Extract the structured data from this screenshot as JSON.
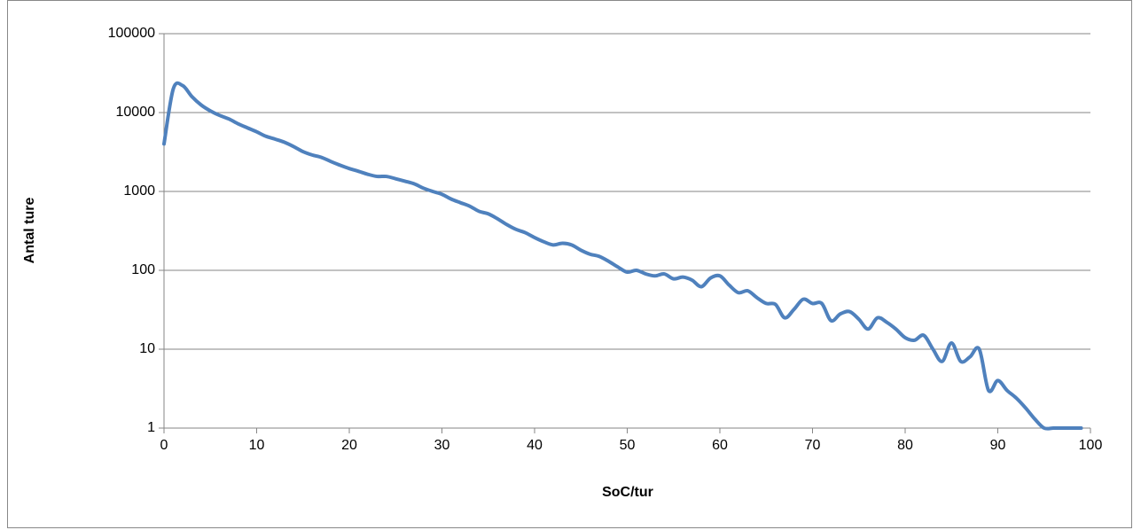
{
  "chart_data": {
    "type": "line",
    "x_label": "SoC/tur",
    "y_label": "Antal ture",
    "log_scale": true,
    "grid": true,
    "x": [
      0,
      1,
      2,
      3,
      4,
      5,
      6,
      7,
      8,
      9,
      10,
      11,
      12,
      13,
      14,
      15,
      16,
      17,
      18,
      19,
      20,
      21,
      22,
      23,
      24,
      25,
      26,
      27,
      28,
      29,
      30,
      31,
      32,
      33,
      34,
      35,
      36,
      37,
      38,
      39,
      40,
      41,
      42,
      43,
      44,
      45,
      46,
      47,
      48,
      49,
      50,
      51,
      52,
      53,
      54,
      55,
      56,
      57,
      58,
      59,
      60,
      61,
      62,
      63,
      64,
      65,
      66,
      67,
      68,
      69,
      70,
      71,
      72,
      73,
      74,
      75,
      76,
      77,
      78,
      79,
      80,
      81,
      82,
      83,
      84,
      85,
      86,
      87,
      88,
      89,
      90,
      91,
      92,
      93,
      94,
      95,
      96,
      97,
      98,
      99
    ],
    "series": [
      {
        "color": "#4f81bd",
        "values": [
          4000,
          20000,
          22000,
          16000,
          12500,
          10500,
          9200,
          8300,
          7200,
          6400,
          5700,
          5000,
          4600,
          4200,
          3700,
          3200,
          2900,
          2700,
          2400,
          2150,
          1950,
          1800,
          1650,
          1550,
          1550,
          1450,
          1350,
          1250,
          1100,
          1000,
          920,
          800,
          720,
          650,
          560,
          520,
          450,
          380,
          330,
          300,
          260,
          230,
          210,
          220,
          210,
          180,
          160,
          150,
          130,
          110,
          95,
          100,
          90,
          85,
          90,
          78,
          82,
          75,
          62,
          80,
          85,
          65,
          52,
          55,
          45,
          38,
          37,
          25,
          32,
          43,
          38,
          38,
          23,
          28,
          30,
          24,
          18,
          25,
          22,
          18,
          14,
          13,
          15,
          10,
          7,
          12,
          7,
          8,
          10,
          3,
          4,
          3,
          2.4,
          1.8,
          1.3,
          1,
          1,
          1,
          1,
          1
        ]
      }
    ],
    "xlim": [
      0,
      100
    ],
    "xticks": [
      0,
      10,
      20,
      30,
      40,
      50,
      60,
      70,
      80,
      90,
      100
    ],
    "ylim": [
      1,
      100000
    ],
    "yticks": [
      1,
      10,
      100,
      1000,
      10000,
      100000
    ]
  }
}
